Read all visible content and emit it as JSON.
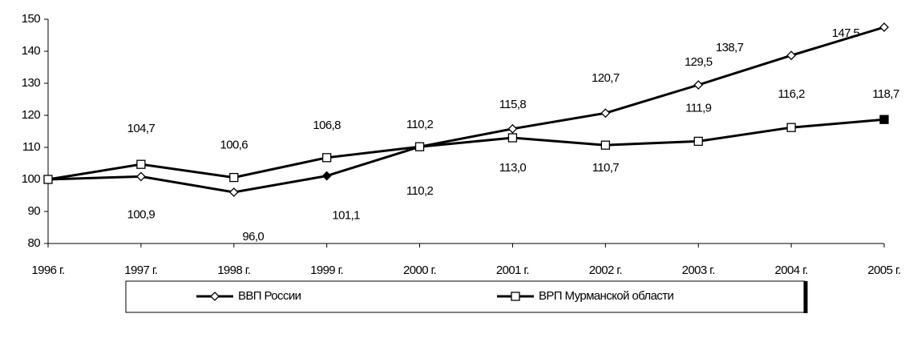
{
  "chart_data": {
    "type": "line",
    "categories": [
      "1996 г.",
      "1997 г.",
      "1998 г.",
      "1999 г.",
      "2000 г.",
      "2001 г.",
      "2002 г.",
      "2003 г.",
      "2004 г.",
      "2005 г."
    ],
    "series": [
      {
        "name": "ВВП России",
        "color": "#000000",
        "values": [
          100,
          100.9,
          96.0,
          101.1,
          110.2,
          115.8,
          120.7,
          129.5,
          138.7,
          147.5
        ],
        "value_labels": [
          null,
          "100,9",
          "96,0",
          "101,1",
          "110,2",
          "115,8",
          "120,7",
          "129,5",
          "138,7",
          "147,5"
        ]
      },
      {
        "name": "ВРП Мурманской области",
        "color": "#000000",
        "values": [
          100,
          104.7,
          100.6,
          106.8,
          110.2,
          113.0,
          110.7,
          111.9,
          116.2,
          118.7
        ],
        "value_labels": [
          null,
          "104,7",
          "100,6",
          "106,8",
          "110,2",
          "113,0",
          "110,7",
          "111,9",
          "116,2",
          "118,7"
        ]
      }
    ],
    "ylim": [
      80,
      150
    ],
    "yticks": [
      80,
      90,
      100,
      110,
      120,
      130,
      140,
      150
    ],
    "grid": false,
    "legend": "bottom"
  }
}
